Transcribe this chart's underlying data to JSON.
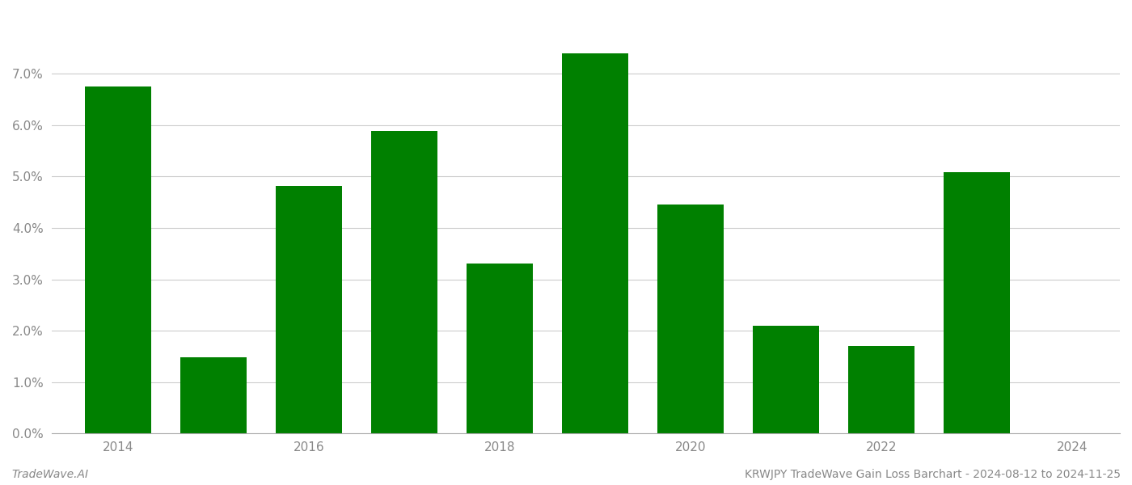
{
  "years": [
    2014,
    2015,
    2016,
    2017,
    2018,
    2019,
    2020,
    2021,
    2022,
    2023
  ],
  "values": [
    0.0675,
    0.0148,
    0.0482,
    0.0588,
    0.033,
    0.074,
    0.0445,
    0.021,
    0.017,
    0.0508
  ],
  "bar_color": "#008000",
  "background_color": "#ffffff",
  "grid_color": "#cccccc",
  "ylim": [
    0,
    0.082
  ],
  "yticks": [
    0.0,
    0.01,
    0.02,
    0.03,
    0.04,
    0.05,
    0.06,
    0.07
  ],
  "xticks": [
    2014,
    2016,
    2018,
    2020,
    2022,
    2024
  ],
  "xlim": [
    2013.3,
    2024.5
  ],
  "footer_left": "TradeWave.AI",
  "footer_right": "KRWJPY TradeWave Gain Loss Barchart - 2024-08-12 to 2024-11-25",
  "bar_width": 0.7,
  "axis_fontsize": 11,
  "footer_fontsize": 10
}
